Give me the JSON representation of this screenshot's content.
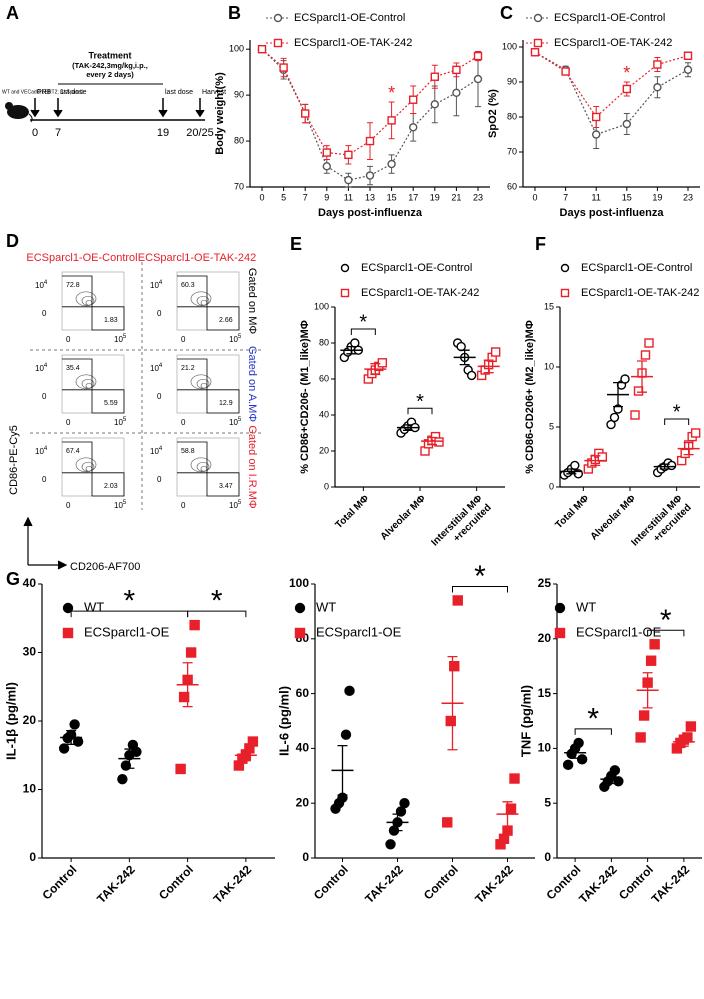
{
  "panel_labels": [
    "A",
    "B",
    "C",
    "D",
    "E",
    "F",
    "G"
  ],
  "timeline": {
    "mouse_label": "WT and VECadCreERT2; lsl-Sparcl1",
    "treatment_title": "Treatment",
    "treatment_detail": [
      "(TAK-242,3mg/kg,i.p.,",
      "every 2 days)"
    ],
    "events": [
      "PR8",
      "1st dose",
      "last dose",
      "Harvest"
    ],
    "days": [
      "0",
      "7",
      "19",
      "20/25"
    ]
  },
  "flow": {
    "column_titles": [
      "ECSparcl1-OE-Control",
      "ECSparcl1-OE-TAK-242"
    ],
    "row_labels": [
      "Gated on MΦ",
      "Gated on A.MΦ",
      "Gated on I.R.MΦ"
    ],
    "row_label_colors": [
      "#000000",
      "#2233cc",
      "#e8202a"
    ],
    "y_axis": "CD86-PE-Cy5",
    "x_axis": "CD206-AF700",
    "tick_labels": {
      "y_high": "10",
      "y_high_exp": "4",
      "zero": "0",
      "x_high": "10",
      "x_high_exp": "5"
    },
    "quadrants": [
      [
        [
          "72.8",
          "1.83"
        ],
        [
          "60.3",
          "2.66"
        ]
      ],
      [
        [
          "35.4",
          "5.59"
        ],
        [
          "21.2",
          "12.9"
        ]
      ],
      [
        [
          "67.4",
          "2.03"
        ],
        [
          "58.8",
          "3.47"
        ]
      ]
    ]
  },
  "chart_data": [
    {
      "type": "line",
      "ylabel": "Body weight(%)",
      "xlabel": "Days post-influenza",
      "categories": [
        "0",
        "5",
        "7",
        "9",
        "11",
        "13",
        "15",
        "17",
        "19",
        "21",
        "23"
      ],
      "ylim": [
        70,
        102
      ],
      "yticks": [
        70,
        80,
        90,
        100
      ],
      "series": [
        {
          "name": "ECSparcl1-OE-Control",
          "color": "#555555",
          "marker": "circle-open",
          "values": [
            100,
            95.5,
            86,
            74.5,
            71.5,
            72.5,
            75,
            83,
            88,
            90.5,
            93.5
          ],
          "errors": [
            0,
            2,
            2,
            1.5,
            1.5,
            2,
            2,
            3,
            4,
            5,
            6
          ]
        },
        {
          "name": "ECSparcl1-OE-TAK-242",
          "color": "#e8202a",
          "marker": "square-open",
          "values": [
            100,
            96,
            86,
            77.5,
            77,
            80,
            84.5,
            89,
            94,
            95.5,
            98.5
          ],
          "errors": [
            0,
            2,
            2,
            1.5,
            2,
            4,
            4,
            3,
            2.5,
            1.5,
            1
          ]
        }
      ],
      "annotations": [
        {
          "text": "*",
          "category": 6,
          "color": "#e8202a"
        }
      ]
    },
    {
      "type": "line",
      "ylabel": "SpO2 (%)",
      "xlabel": "Days post-influenza",
      "categories": [
        "0",
        "7",
        "11",
        "15",
        "19",
        "23"
      ],
      "ylim": [
        60,
        102
      ],
      "yticks": [
        60,
        70,
        80,
        90,
        100
      ],
      "series": [
        {
          "name": "ECSparcl1-OE-Control",
          "color": "#555555",
          "marker": "circle-open",
          "values": [
            98.5,
            93.5,
            75,
            78,
            88.5,
            93.5
          ],
          "errors": [
            0,
            1,
            4,
            3,
            3,
            2
          ]
        },
        {
          "name": "ECSparcl1-OE-TAK-242",
          "color": "#e8202a",
          "marker": "square-open",
          "values": [
            98.5,
            93,
            80,
            88,
            95,
            97.5
          ],
          "errors": [
            0,
            1,
            3,
            2,
            2,
            1
          ]
        }
      ],
      "annotations": [
        {
          "text": "*",
          "category": 3,
          "color": "#e8202a"
        }
      ]
    },
    {
      "type": "dot",
      "ylabel": "% CD86+CD206- (M1_like)MΦ",
      "categories": [
        [
          "Total MΦ"
        ],
        [
          "Alveolar MΦ"
        ],
        [
          "Interstitial MΦ",
          "+recruited"
        ]
      ],
      "ylim": [
        0,
        100
      ],
      "yticks": [
        0,
        20,
        40,
        60,
        80,
        100
      ],
      "series": [
        {
          "name": "ECSparcl1-OE-Control",
          "color": "#000000",
          "marker": "circle-open",
          "values": [
            [
              72,
              75,
              78,
              80,
              76
            ],
            [
              30,
              32,
              34,
              36,
              33
            ],
            [
              80,
              78,
              72,
              65,
              62
            ]
          ],
          "means": [
            76,
            33,
            72
          ],
          "sems": [
            2,
            1.5,
            4
          ]
        },
        {
          "name": "ECSparcl1-OE-TAK-242",
          "color": "#e8202a",
          "marker": "square-open",
          "values": [
            [
              60,
              63,
              65,
              67,
              69
            ],
            [
              20,
              24,
              26,
              28,
              25
            ],
            [
              62,
              65,
              68,
              72,
              75
            ]
          ],
          "means": [
            65.5,
            25.5,
            67
          ],
          "sems": [
            3,
            2,
            3.5
          ]
        }
      ],
      "annotations": [
        {
          "text": "*",
          "category": 0
        },
        {
          "text": "*",
          "category": 1
        }
      ]
    },
    {
      "type": "dot",
      "ylabel": "% CD86-CD206+ (M2_like)MΦ",
      "categories": [
        [
          "Total MΦ"
        ],
        [
          "Alveolar MΦ"
        ],
        [
          "Interstitial MΦ",
          "+recruited"
        ]
      ],
      "ylim": [
        0,
        15
      ],
      "yticks": [
        0,
        5,
        10,
        15
      ],
      "series": [
        {
          "name": "ECSparcl1-OE-Control",
          "color": "#000000",
          "marker": "circle-open",
          "values": [
            [
              1,
              1.2,
              1.5,
              1.8,
              1.1
            ],
            [
              5.2,
              5.8,
              6.5,
              8.5,
              9
            ],
            [
              1.2,
              1.5,
              1.7,
              2,
              1.8
            ]
          ],
          "means": [
            1.3,
            7.7,
            1.7
          ],
          "sems": [
            0.2,
            1,
            0.2
          ]
        },
        {
          "name": "ECSparcl1-OE-TAK-242",
          "color": "#e8202a",
          "marker": "square-open",
          "values": [
            [
              1.5,
              2,
              2.3,
              2.8,
              2.5
            ],
            [
              6,
              8,
              9.5,
              11,
              12
            ],
            [
              2.2,
              2.8,
              3.5,
              4.2,
              4.5
            ]
          ],
          "means": [
            2.2,
            9.2,
            3.2
          ],
          "sems": [
            0.4,
            1.3,
            0.5
          ]
        }
      ],
      "annotations": [
        {
          "text": "*",
          "category": 2
        }
      ]
    },
    {
      "type": "dot",
      "ylabel": "IL-1β (pg/ml)",
      "categories": [
        [
          "Control"
        ],
        [
          "TAK-242"
        ],
        [
          "Control"
        ],
        [
          "TAK-242"
        ]
      ],
      "ylim": [
        0,
        40
      ],
      "yticks": [
        0,
        10,
        20,
        30,
        40
      ],
      "series": [
        {
          "name": "WT",
          "color": "#000000",
          "marker": "circle",
          "values": [
            [
              16,
              17.5,
              18,
              19.5,
              17
            ],
            [
              11.5,
              13.5,
              15,
              16.5,
              15.5
            ],
            null,
            null
          ],
          "means": [
            17.6,
            14.5,
            null,
            null
          ],
          "sems": [
            1,
            1.4,
            null,
            null
          ]
        },
        {
          "name": "ECSparcl1-OE",
          "color": "#e8202a",
          "marker": "square",
          "values": [
            null,
            null,
            [
              13,
              23.5,
              26,
              30,
              34
            ],
            [
              13.5,
              14.5,
              15,
              16,
              17
            ]
          ],
          "means": [
            null,
            null,
            25.3,
            15
          ],
          "sems": [
            null,
            null,
            3.2,
            0.8
          ]
        }
      ],
      "annotations": [
        {
          "text": "*",
          "between": [
            0,
            2
          ]
        },
        {
          "text": "*",
          "between": [
            2,
            3
          ]
        }
      ]
    },
    {
      "type": "dot",
      "ylabel": "IL-6 (pg/ml)",
      "categories": [
        [
          "Control"
        ],
        [
          "TAK-242"
        ],
        [
          "Control"
        ],
        [
          "TAK-242"
        ]
      ],
      "ylim": [
        0,
        100
      ],
      "yticks": [
        0,
        20,
        40,
        60,
        80,
        100
      ],
      "series": [
        {
          "name": "WT",
          "color": "#000000",
          "marker": "circle",
          "values": [
            [
              18,
              20,
              22,
              45,
              61
            ],
            [
              5,
              10,
              13,
              17,
              20
            ],
            null,
            null
          ],
          "means": [
            32,
            13,
            null,
            null
          ],
          "sems": [
            9,
            3,
            null,
            null
          ]
        },
        {
          "name": "ECSparcl1-OE",
          "color": "#e8202a",
          "marker": "square",
          "values": [
            null,
            null,
            [
              13,
              50,
              70,
              94
            ],
            [
              5,
              7,
              10,
              18,
              29
            ]
          ],
          "means": [
            null,
            null,
            56.5,
            16
          ],
          "sems": [
            null,
            null,
            17,
            4.5
          ]
        }
      ],
      "annotations": [
        {
          "text": "*",
          "between": [
            2,
            3
          ]
        }
      ]
    },
    {
      "type": "dot",
      "ylabel": "TNF (pg/ml)",
      "categories": [
        [
          "Control"
        ],
        [
          "TAK-242"
        ],
        [
          "Control"
        ],
        [
          "TAK-242"
        ]
      ],
      "ylim": [
        0,
        25
      ],
      "yticks": [
        0,
        5,
        10,
        15,
        20,
        25
      ],
      "series": [
        {
          "name": "WT",
          "color": "#000000",
          "marker": "circle",
          "values": [
            [
              8.5,
              9.5,
              10,
              10.5,
              9
            ],
            [
              6.5,
              7,
              7.5,
              8,
              7
            ],
            null,
            null
          ],
          "means": [
            9.6,
            7.2,
            null,
            null
          ],
          "sems": [
            0.5,
            0.4,
            null,
            null
          ]
        },
        {
          "name": "ECSparcl1-OE",
          "color": "#e8202a",
          "marker": "square",
          "values": [
            null,
            null,
            [
              11,
              13,
              16,
              18,
              19.5
            ],
            [
              10,
              10.5,
              10.8,
              11,
              12
            ]
          ],
          "means": [
            null,
            null,
            15.3,
            10.6
          ],
          "sems": [
            null,
            null,
            1.6,
            0.4
          ]
        }
      ],
      "annotations": [
        {
          "text": "*",
          "between": [
            0,
            1
          ]
        },
        {
          "text": "*",
          "between": [
            2,
            3
          ]
        }
      ]
    }
  ]
}
